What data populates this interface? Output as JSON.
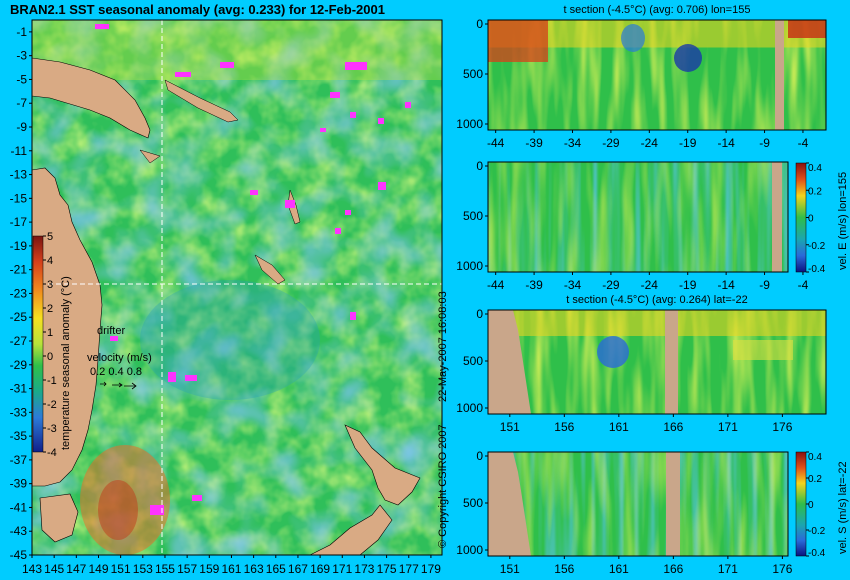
{
  "main_map": {
    "title": "BRAN2.1 SST seasonal anomaly (avg: 0.233) for 12-Feb-2001",
    "y_ticks": [
      "-1",
      "-3",
      "-5",
      "-7",
      "-9",
      "-11",
      "-13",
      "-15",
      "-17",
      "-19",
      "-21",
      "-23",
      "-25",
      "-27",
      "-29",
      "-31",
      "-33",
      "-35",
      "-37",
      "-39",
      "-41",
      "-43",
      "-45"
    ],
    "x_ticks": [
      "143",
      "145",
      "147",
      "149",
      "151",
      "153",
      "155",
      "157",
      "159",
      "161",
      "163",
      "165",
      "167",
      "169",
      "171",
      "173",
      "175",
      "177",
      "179"
    ],
    "colorbar_label": "temperature seasonal anomaly (°C)",
    "colorbar_ticks": [
      "5",
      "4",
      "3",
      "2",
      "1",
      "0",
      "-1",
      "-2",
      "-3",
      "-4"
    ],
    "drifter_label": "drifter",
    "velocity_label": "velocity (m/s)",
    "velocity_values": "0.2 0.4 0.8",
    "copyright": "© Copyright CSIRO 2007",
    "timestamp": "22-May-2007 16:08:03",
    "colors": {
      "land": "#d9aa84",
      "drifter": "#ff33ff",
      "crosshair": "#ffffff",
      "background": "#00ccff"
    }
  },
  "panels": [
    {
      "id": "t-lon",
      "title": "t section (-4.5°C) (avg: 0.706) lon=155",
      "x_ticks": [
        "-44",
        "-39",
        "-34",
        "-29",
        "-24",
        "-19",
        "-14",
        "-9",
        "-4"
      ],
      "y_ticks": [
        "0",
        "500",
        "1000"
      ]
    },
    {
      "id": "vel-e",
      "title": "",
      "side_label": "vel. E (m/s) lon=155",
      "cbar_ticks": [
        "0.4",
        "0.2",
        "0",
        "-0.2",
        "-0.4"
      ],
      "x_ticks": [
        "-44",
        "-39",
        "-34",
        "-29",
        "-24",
        "-19",
        "-14",
        "-9",
        "-4"
      ],
      "y_ticks": [
        "0",
        "500",
        "1000"
      ]
    },
    {
      "id": "t-lat",
      "title": "t section (-4.5°C) (avg: 0.264) lat=-22",
      "x_ticks": [
        "151",
        "156",
        "161",
        "166",
        "171",
        "176"
      ],
      "y_ticks": [
        "0",
        "500",
        "1000"
      ]
    },
    {
      "id": "vel-s",
      "title": "",
      "side_label": "vel. S (m/s) lat=-22",
      "cbar_ticks": [
        "0.4",
        "0.2",
        "0",
        "-0.2",
        "-0.4"
      ],
      "x_ticks": [
        "151",
        "156",
        "161",
        "166",
        "171",
        "176"
      ],
      "y_ticks": [
        "0",
        "500",
        "1000"
      ]
    }
  ],
  "chart_data": [
    {
      "type": "heatmap",
      "title": "BRAN2.1 SST seasonal anomaly (avg: 0.233) for 12-Feb-2001",
      "xlabel": "",
      "ylabel": "",
      "xlim": [
        143,
        180
      ],
      "ylim": [
        -45,
        0
      ],
      "colorbar": {
        "label": "temperature seasonal anomaly (°C)",
        "range": [
          -4,
          5
        ]
      },
      "crosshair": {
        "lon": 155,
        "lat": -22
      },
      "average": 0.233
    },
    {
      "type": "heatmap",
      "title": "t section (-4.5°C) (avg: 0.706) lon=155",
      "xlim": [
        -45,
        -1
      ],
      "ylim": [
        0,
        1000
      ],
      "average": 0.706
    },
    {
      "type": "heatmap",
      "title": "vel. E (m/s) lon=155",
      "xlim": [
        -45,
        -1
      ],
      "ylim": [
        0,
        1000
      ],
      "colorbar": {
        "range": [
          -0.4,
          0.4
        ]
      }
    },
    {
      "type": "heatmap",
      "title": "t section (-4.5°C) (avg: 0.264) lat=-22",
      "xlim": [
        149,
        180
      ],
      "ylim": [
        0,
        1000
      ],
      "average": 0.264
    },
    {
      "type": "heatmap",
      "title": "vel. S (m/s) lat=-22",
      "xlim": [
        149,
        180
      ],
      "ylim": [
        0,
        1000
      ],
      "colorbar": {
        "range": [
          -0.4,
          0.4
        ]
      }
    }
  ]
}
